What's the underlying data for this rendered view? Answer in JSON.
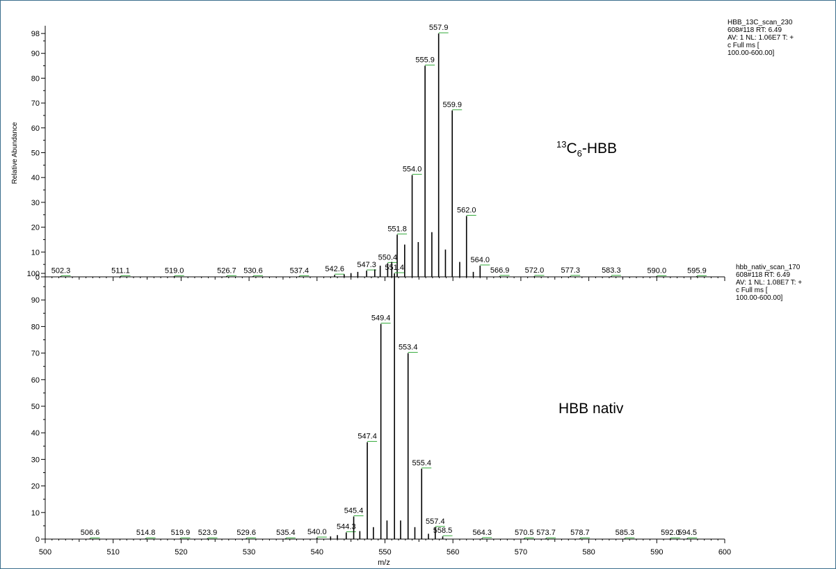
{
  "chart_data": [
    {
      "type": "bar",
      "id": "top",
      "ylabel": "Relative Abundance",
      "xlim": [
        500,
        600
      ],
      "ylim": [
        0,
        100
      ],
      "yticks": [
        0,
        10,
        20,
        30,
        40,
        50,
        60,
        70,
        80,
        90,
        98
      ],
      "annotation": {
        "sup": "13",
        "main": "C",
        "sub": "6",
        "rest": "-HBB"
      },
      "scan_info": [
        "HBB_13C_scan_230",
        "608#118  RT: 6.49",
        "AV: 1 NL: 1.06E7 T: +",
        "c Full ms [",
        "100.00-600.00]"
      ],
      "peaks": [
        {
          "x": 502.3,
          "y": 0.2,
          "label": "502.3"
        },
        {
          "x": 511.1,
          "y": 0.2,
          "label": "511.1"
        },
        {
          "x": 519.0,
          "y": 0.2,
          "label": "519.0"
        },
        {
          "x": 526.7,
          "y": 0.2,
          "label": "526.7"
        },
        {
          "x": 530.6,
          "y": 0.2,
          "label": "530.6"
        },
        {
          "x": 537.4,
          "y": 0.2,
          "label": "537.4"
        },
        {
          "x": 542.6,
          "y": 0.8,
          "label": "542.6"
        },
        {
          "x": 544.0,
          "y": 1.0
        },
        {
          "x": 545.0,
          "y": 1.5
        },
        {
          "x": 546.0,
          "y": 2.0
        },
        {
          "x": 547.3,
          "y": 2.5,
          "label": "547.3"
        },
        {
          "x": 548.5,
          "y": 3.0
        },
        {
          "x": 549.3,
          "y": 4.5
        },
        {
          "x": 550.4,
          "y": 5.5,
          "label": "550.4"
        },
        {
          "x": 551.0,
          "y": 6.0
        },
        {
          "x": 551.8,
          "y": 17,
          "label": "551.8"
        },
        {
          "x": 552.9,
          "y": 13
        },
        {
          "x": 554.0,
          "y": 41,
          "label": "554.0"
        },
        {
          "x": 554.9,
          "y": 14
        },
        {
          "x": 555.9,
          "y": 85,
          "label": "555.9"
        },
        {
          "x": 556.9,
          "y": 18
        },
        {
          "x": 557.9,
          "y": 98,
          "label": "557.9"
        },
        {
          "x": 558.9,
          "y": 11
        },
        {
          "x": 559.9,
          "y": 67,
          "label": "559.9"
        },
        {
          "x": 561.0,
          "y": 6
        },
        {
          "x": 562.0,
          "y": 24.5,
          "label": "562.0"
        },
        {
          "x": 563.0,
          "y": 2
        },
        {
          "x": 564.0,
          "y": 4.5,
          "label": "564.0"
        },
        {
          "x": 566.9,
          "y": 0.3,
          "label": "566.9"
        },
        {
          "x": 572.0,
          "y": 0.3,
          "label": "572.0"
        },
        {
          "x": 577.3,
          "y": 0.3,
          "label": "577.3"
        },
        {
          "x": 583.3,
          "y": 0.3,
          "label": "583.3"
        },
        {
          "x": 590.0,
          "y": 0.2,
          "label": "590.0"
        },
        {
          "x": 595.9,
          "y": 0.2,
          "label": "595.9"
        }
      ]
    },
    {
      "type": "bar",
      "id": "bottom",
      "xlabel": "m/z",
      "xlim": [
        500,
        600
      ],
      "ylim": [
        0,
        100
      ],
      "xticks": [
        500,
        510,
        520,
        530,
        540,
        550,
        560,
        570,
        580,
        590,
        600
      ],
      "yticks": [
        0,
        10,
        20,
        30,
        40,
        50,
        60,
        70,
        80,
        90,
        100
      ],
      "annotation": {
        "text": "HBB nativ"
      },
      "scan_info": [
        "hbb_nativ_scan_170",
        "608#118  RT: 6.49",
        "AV: 1 NL: 1.08E7 T: +",
        "c Full ms [",
        "100.00-600.00]"
      ],
      "peaks": [
        {
          "x": 506.6,
          "y": 0.2,
          "label": "506.6"
        },
        {
          "x": 514.8,
          "y": 0.2,
          "label": "514.8"
        },
        {
          "x": 519.9,
          "y": 0.2,
          "label": "519.9"
        },
        {
          "x": 523.9,
          "y": 0.2,
          "label": "523.9"
        },
        {
          "x": 529.6,
          "y": 0.2,
          "label": "529.6"
        },
        {
          "x": 535.4,
          "y": 0.2,
          "label": "535.4"
        },
        {
          "x": 540.0,
          "y": 0.5,
          "label": "540.0"
        },
        {
          "x": 542.0,
          "y": 1.0
        },
        {
          "x": 543.0,
          "y": 1.5
        },
        {
          "x": 544.3,
          "y": 2.5,
          "label": "544.3"
        },
        {
          "x": 545.4,
          "y": 8.5,
          "label": "545.4"
        },
        {
          "x": 546.3,
          "y": 3.0
        },
        {
          "x": 547.4,
          "y": 36.5,
          "label": "547.4"
        },
        {
          "x": 548.3,
          "y": 4.5
        },
        {
          "x": 549.4,
          "y": 81,
          "label": "549.4"
        },
        {
          "x": 550.3,
          "y": 7
        },
        {
          "x": 551.4,
          "y": 100,
          "label": "551.4"
        },
        {
          "x": 552.3,
          "y": 7
        },
        {
          "x": 553.4,
          "y": 70,
          "label": "553.4"
        },
        {
          "x": 554.4,
          "y": 4.5
        },
        {
          "x": 555.4,
          "y": 26.5,
          "label": "555.4"
        },
        {
          "x": 556.4,
          "y": 2
        },
        {
          "x": 557.4,
          "y": 4.5,
          "label": "557.4"
        },
        {
          "x": 558.5,
          "y": 1.0,
          "label": "558.5"
        },
        {
          "x": 564.3,
          "y": 0.3,
          "label": "564.3"
        },
        {
          "x": 570.5,
          "y": 0.2,
          "label": "570.5"
        },
        {
          "x": 573.7,
          "y": 0.2,
          "label": "573.7"
        },
        {
          "x": 578.7,
          "y": 0.2,
          "label": "578.7"
        },
        {
          "x": 585.3,
          "y": 0.2,
          "label": "585.3"
        },
        {
          "x": 592.0,
          "y": 0.2,
          "label": "592.0"
        },
        {
          "x": 594.5,
          "y": 0.2,
          "label": "594.5"
        }
      ]
    }
  ]
}
